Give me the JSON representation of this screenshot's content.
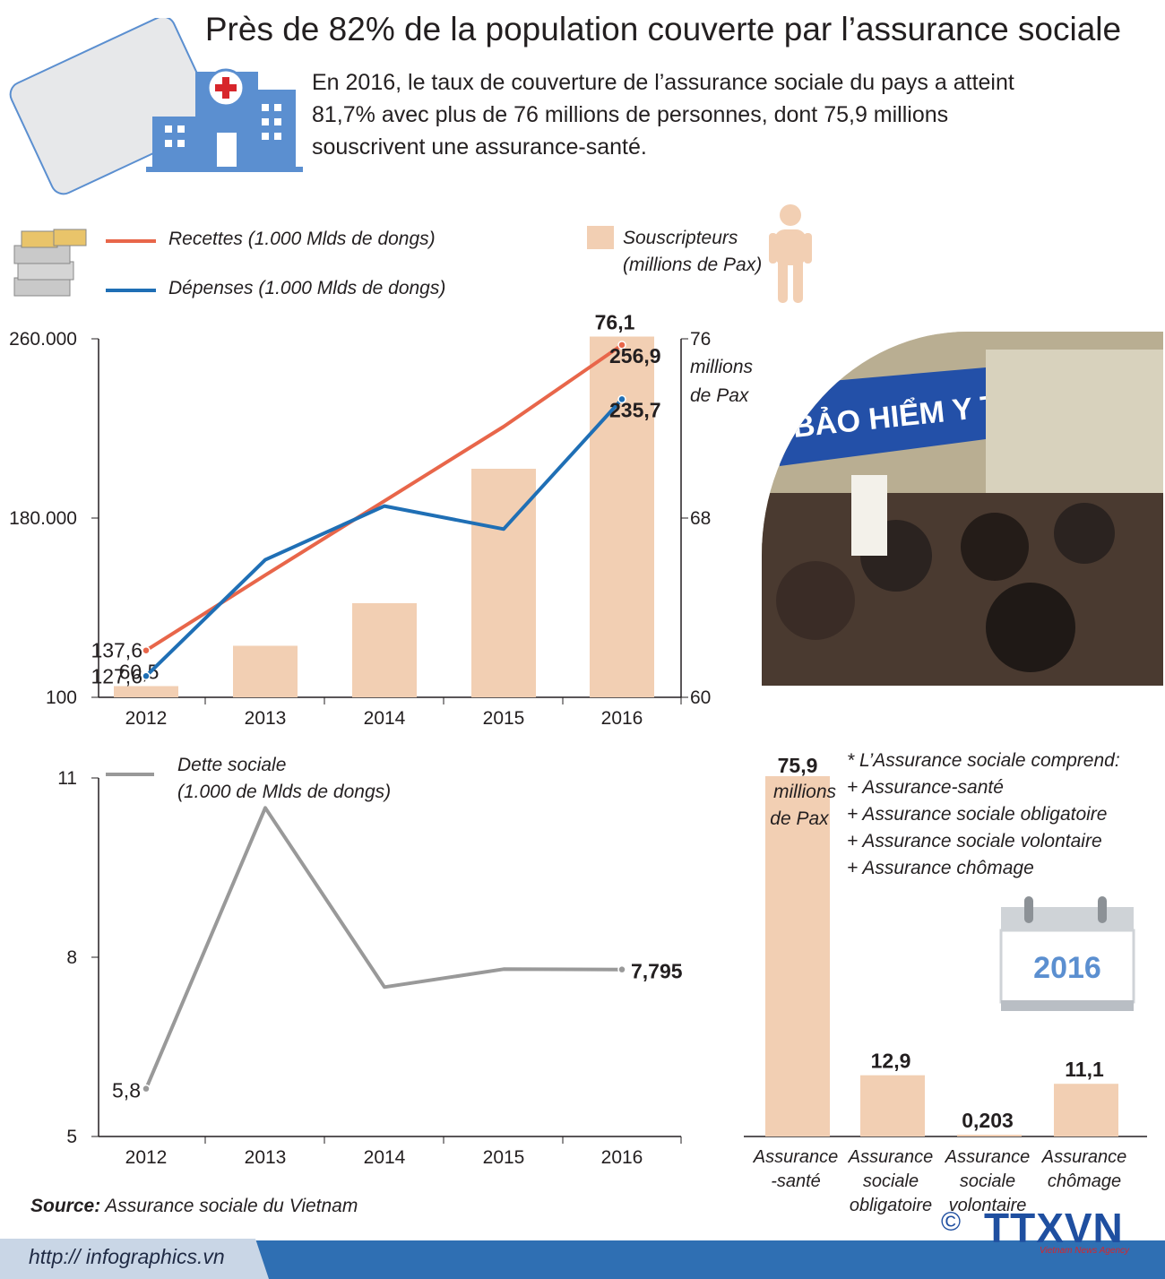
{
  "header": {
    "title": "Près de 82% de la population couverte par l’assurance sociale",
    "intro": "En 2016, le taux de couverture de l’assurance sociale du pays a atteint 81,7% avec plus de 76 millions de personnes, dont 75,9 millions souscrivent une assurance-santé."
  },
  "colors": {
    "recettes": "#e8664a",
    "depenses": "#1f6fb5",
    "bars": "#f2cfb3",
    "dette": "#999999",
    "icon_blue": "#5b8fd0",
    "footer": "#2f6fb3"
  },
  "legend": {
    "recettes": "Recettes (1.000 Mlds de dongs)",
    "depenses": "Dépenses (1.000 Mlds de dongs)",
    "souscripteurs_1": "Souscripteurs",
    "souscripteurs_2": "(millions de Pax)",
    "dette_1": "Dette sociale",
    "dette_2": "(1.000 de Mlds de dongs)"
  },
  "chart_data": [
    {
      "type": "bar+line",
      "categories": [
        "2012",
        "2013",
        "2014",
        "2015",
        "2016"
      ],
      "left_axis": {
        "ticks": [
          "260.000",
          "180.000",
          "100"
        ],
        "ylim": [
          100,
          260000
        ]
      },
      "right_axis": {
        "ticks": [
          "76",
          "68",
          "60"
        ],
        "unit_lines": [
          "millions",
          "de Pax"
        ],
        "ylim": [
          60,
          76
        ]
      },
      "series": [
        {
          "name": "Recettes (1.000 Mlds de dongs)",
          "kind": "line",
          "axis": "left",
          "values": [
            137.6,
            167,
            196,
            225,
            256.9
          ],
          "labels": [
            "137,6",
            "",
            "",
            "",
            "256,9"
          ]
        },
        {
          "name": "Dépenses (1.000 Mlds de dongs)",
          "kind": "line",
          "axis": "left",
          "values": [
            127.6,
            173,
            194,
            185,
            235.7
          ],
          "labels": [
            "127,6",
            "",
            "",
            "",
            "235,7"
          ]
        },
        {
          "name": "Souscripteurs (millions de Pax)",
          "kind": "bar",
          "axis": "right",
          "values": [
            60.5,
            62.3,
            64.2,
            70.2,
            76.1
          ],
          "labels": [
            "60,5",
            "",
            "",
            "",
            "76,1"
          ]
        }
      ]
    },
    {
      "type": "line",
      "categories": [
        "2012",
        "2013",
        "2014",
        "2015",
        "2016"
      ],
      "y_ticks": [
        "11",
        "8",
        "5"
      ],
      "ylim": [
        5,
        11
      ],
      "series": [
        {
          "name": "Dette sociale (1.000 de Mlds de dongs)",
          "values": [
            5.8,
            10.5,
            7.5,
            7.8,
            7.795
          ],
          "labels": [
            "5,8",
            "",
            "",
            "",
            "7,795"
          ]
        }
      ]
    },
    {
      "type": "bar",
      "title_lines": [
        "75,9",
        "millions",
        "de Pax"
      ],
      "categories": [
        [
          "Assurance",
          "-santé"
        ],
        [
          "Assurance",
          "sociale",
          "obligatoire"
        ],
        [
          "Assurance",
          "sociale",
          "volontaire"
        ],
        [
          "Assurance",
          "chômage"
        ]
      ],
      "values": [
        75.9,
        12.9,
        0.203,
        11.1
      ],
      "labels": [
        "75,9",
        "12,9",
        "0,203",
        "11,1"
      ]
    }
  ],
  "note": {
    "lines": [
      "* L’Assurance sociale comprend:",
      "+ Assurance-santé",
      "+ Assurance sociale obligatoire",
      "+ Assurance sociale volontaire",
      "+ Assurance chômage"
    ]
  },
  "calendar": {
    "year": "2016"
  },
  "photo": {
    "sign_text": "BẢO HIỂM Y TẾ"
  },
  "footer": {
    "source_label": "Source:",
    "source_text": " Assurance sociale du Vietnam",
    "url": "http:// infographics.vn",
    "copyright": "©",
    "agency_logo": "TTXVN",
    "agency_sub": "Vietnam News Agency"
  }
}
